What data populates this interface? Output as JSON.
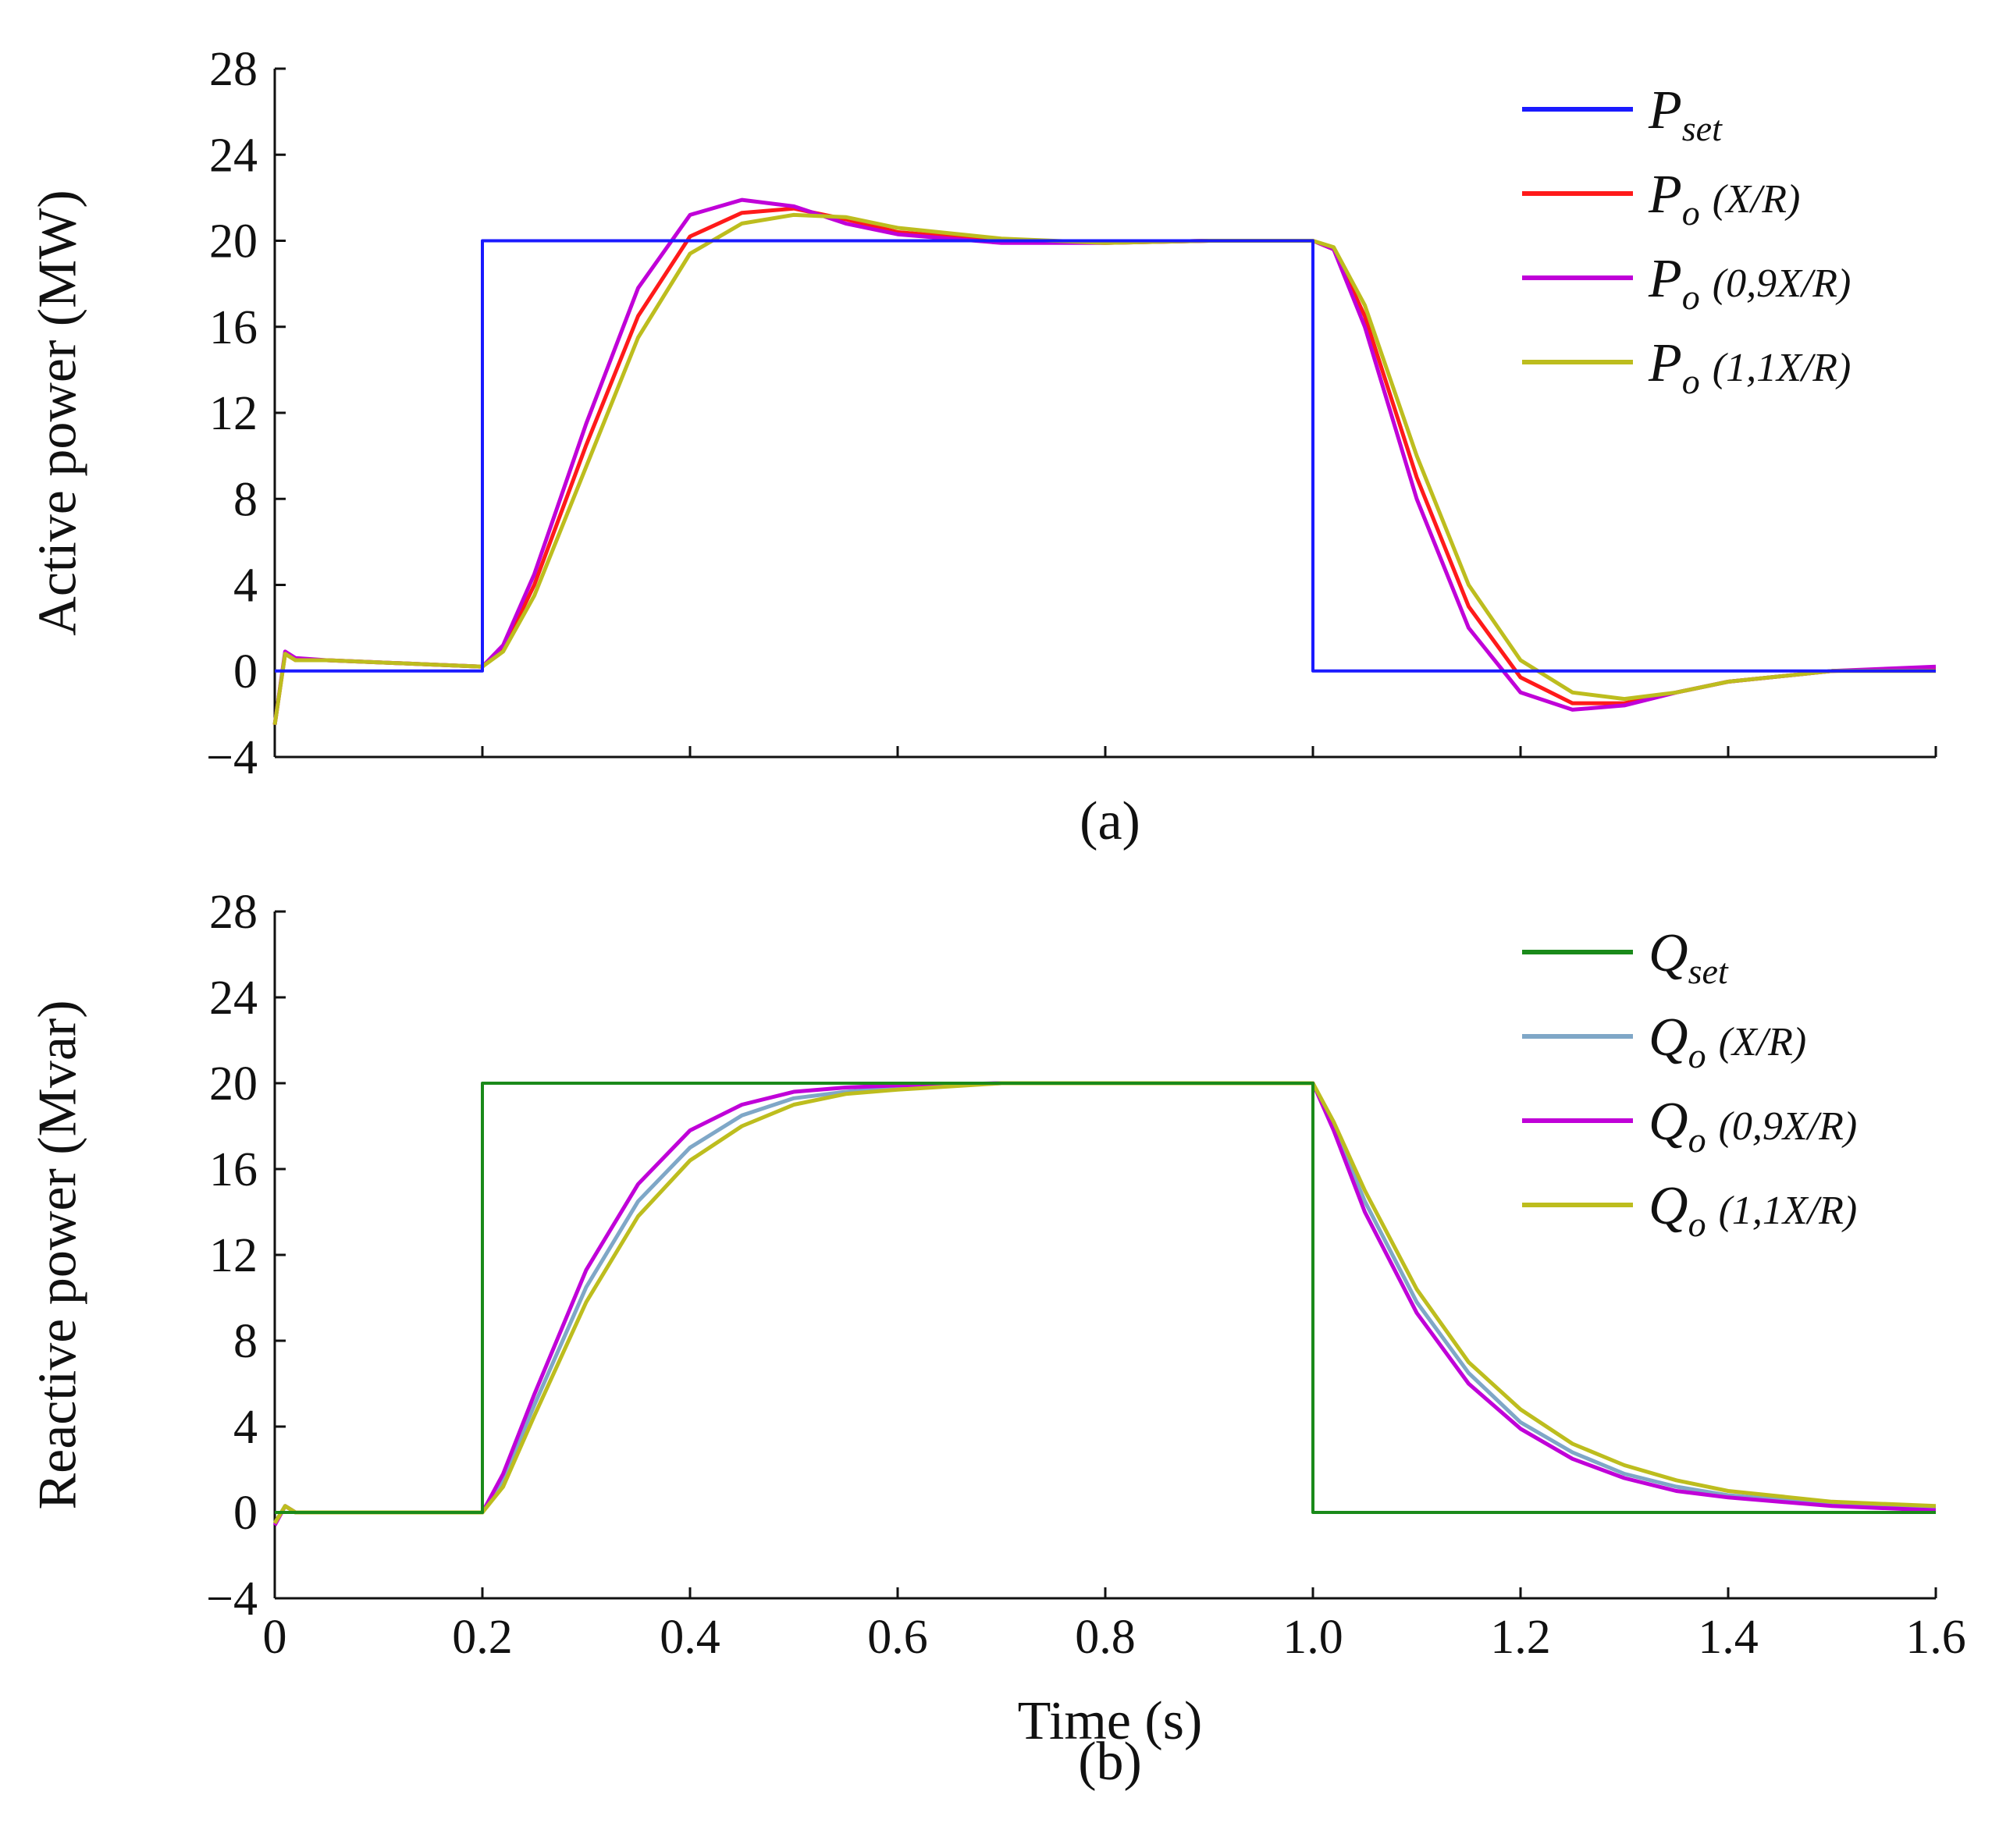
{
  "chart_data": [
    {
      "id": "a",
      "type": "line",
      "panel_label": "(a)",
      "xlabel": "",
      "ylabel": "Active power (MW)",
      "xlim": [
        0,
        1.6
      ],
      "ylim": [
        -4,
        28
      ],
      "yticks": [
        "−4",
        "0",
        "4",
        "8",
        "12",
        "16",
        "20",
        "24",
        "28"
      ],
      "xticks": [],
      "x": [
        0,
        0.01,
        0.02,
        0.05,
        0.1,
        0.15,
        0.2,
        0.22,
        0.25,
        0.3,
        0.35,
        0.4,
        0.45,
        0.5,
        0.55,
        0.6,
        0.7,
        0.8,
        0.9,
        1.0,
        1.02,
        1.05,
        1.1,
        1.15,
        1.2,
        1.25,
        1.3,
        1.35,
        1.4,
        1.5,
        1.6
      ],
      "legend_position": "top-right",
      "series": [
        {
          "name": "P",
          "sub": "set",
          "paren": "",
          "color": "#1a1aff",
          "step": {
            "x": [
              0,
              0.2,
              0.2,
              1.0,
              1.0,
              1.6
            ],
            "y": [
              0,
              0,
              20,
              20,
              0,
              0
            ]
          }
        },
        {
          "name": "P",
          "sub": "o",
          "paren": "(X/R)",
          "color": "#ff1a1a",
          "values": [
            -2.5,
            0.8,
            0.5,
            0.5,
            0.4,
            0.3,
            0.2,
            1.0,
            4.0,
            10.5,
            16.5,
            20.2,
            21.3,
            21.5,
            21.0,
            20.4,
            20.0,
            19.9,
            20.0,
            20.0,
            19.6,
            16.5,
            9.0,
            3.0,
            -0.3,
            -1.5,
            -1.5,
            -1.0,
            -0.5,
            0.0,
            0.1
          ]
        },
        {
          "name": "P",
          "sub": "o",
          "paren": "(0,9X/R)",
          "color": "#c000d8",
          "values": [
            -2.5,
            0.9,
            0.6,
            0.5,
            0.4,
            0.3,
            0.2,
            1.2,
            4.5,
            11.5,
            17.8,
            21.2,
            21.9,
            21.6,
            20.8,
            20.3,
            19.9,
            19.9,
            20.0,
            20.0,
            19.6,
            16.0,
            8.0,
            2.0,
            -1.0,
            -1.8,
            -1.6,
            -1.0,
            -0.5,
            0.0,
            0.2
          ]
        },
        {
          "name": "P",
          "sub": "o",
          "paren": "(1,1X/R)",
          "color": "#bdbd1e",
          "values": [
            -2.5,
            0.8,
            0.5,
            0.5,
            0.4,
            0.3,
            0.2,
            0.9,
            3.5,
            9.5,
            15.5,
            19.4,
            20.8,
            21.2,
            21.1,
            20.6,
            20.1,
            19.9,
            20.0,
            20.0,
            19.7,
            17.0,
            10.0,
            4.0,
            0.5,
            -1.0,
            -1.3,
            -1.0,
            -0.5,
            0.0,
            0.0
          ]
        }
      ]
    },
    {
      "id": "b",
      "type": "line",
      "panel_label": "(b)",
      "xlabel": "Time (s)",
      "ylabel": "Reactive power (Mvar)",
      "xlim": [
        0,
        1.6
      ],
      "ylim": [
        -4,
        28
      ],
      "yticks": [
        "−4",
        "0",
        "4",
        "8",
        "12",
        "16",
        "20",
        "24",
        "28"
      ],
      "xticks": [
        "0",
        "0.2",
        "0.4",
        "0.6",
        "0.8",
        "1.0",
        "1.2",
        "1.4",
        "1.6"
      ],
      "x": [
        0,
        0.01,
        0.02,
        0.05,
        0.1,
        0.15,
        0.2,
        0.22,
        0.25,
        0.3,
        0.35,
        0.4,
        0.45,
        0.5,
        0.55,
        0.6,
        0.7,
        0.8,
        0.9,
        1.0,
        1.02,
        1.05,
        1.1,
        1.15,
        1.2,
        1.25,
        1.3,
        1.35,
        1.4,
        1.5,
        1.6
      ],
      "legend_position": "top-right",
      "series": [
        {
          "name": "Q",
          "sub": "set",
          "paren": "",
          "color": "#1a8a1a",
          "step": {
            "x": [
              0,
              0.2,
              0.2,
              1.0,
              1.0,
              1.6
            ],
            "y": [
              0,
              0,
              20,
              20,
              0,
              0
            ]
          }
        },
        {
          "name": "Q",
          "sub": "o",
          "paren": "(X/R)",
          "color": "#7fa7c7",
          "values": [
            -0.5,
            0.3,
            0.0,
            0.0,
            0.0,
            0.0,
            0.0,
            1.5,
            5.0,
            10.5,
            14.5,
            17.0,
            18.5,
            19.3,
            19.6,
            19.8,
            20.0,
            20.0,
            20.0,
            20.0,
            18.0,
            14.5,
            9.8,
            6.5,
            4.2,
            2.8,
            1.8,
            1.2,
            0.8,
            0.4,
            0.2
          ]
        },
        {
          "name": "Q",
          "sub": "o",
          "paren": "(0,9X/R)",
          "color": "#c000d8",
          "values": [
            -0.6,
            0.3,
            0.0,
            0.0,
            0.0,
            0.0,
            0.0,
            1.8,
            5.5,
            11.3,
            15.3,
            17.8,
            19.0,
            19.6,
            19.8,
            19.9,
            20.0,
            20.0,
            20.0,
            20.0,
            17.8,
            14.0,
            9.3,
            6.0,
            3.9,
            2.5,
            1.6,
            1.0,
            0.7,
            0.3,
            0.1
          ]
        },
        {
          "name": "Q",
          "sub": "o",
          "paren": "(1,1X/R)",
          "color": "#bdbd1e",
          "values": [
            -0.5,
            0.3,
            0.0,
            0.0,
            0.0,
            0.0,
            0.0,
            1.2,
            4.5,
            9.8,
            13.8,
            16.4,
            18.0,
            19.0,
            19.5,
            19.7,
            20.0,
            20.0,
            20.0,
            20.0,
            18.2,
            15.0,
            10.4,
            7.0,
            4.8,
            3.2,
            2.2,
            1.5,
            1.0,
            0.5,
            0.3
          ]
        }
      ]
    }
  ]
}
